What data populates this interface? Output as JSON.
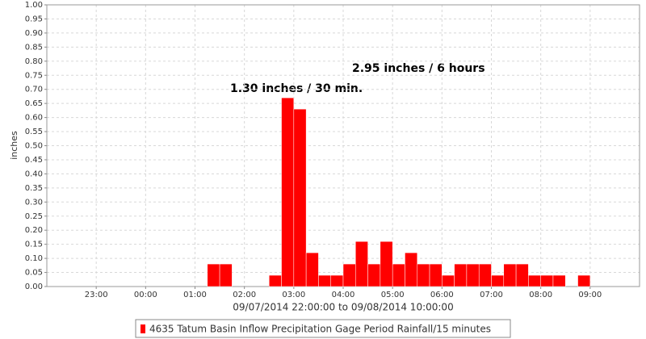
{
  "chart_data": {
    "type": "bar",
    "annotations": [
      "1.30 inches / 30 min.",
      "2.95 inches / 6 hours"
    ],
    "x_label": "09/07/2014 22:00:00 to 09/08/2014 10:00:00",
    "y_label": "inches",
    "xlim": [
      "22:00",
      "10:00"
    ],
    "xticks": [
      "23:00",
      "00:00",
      "01:00",
      "02:00",
      "03:00",
      "04:00",
      "05:00",
      "06:00",
      "07:00",
      "08:00",
      "09:00"
    ],
    "ylim": [
      0,
      1
    ],
    "yticks": [
      {
        "value": 0,
        "label": "0.00"
      },
      {
        "value": 0.05,
        "label": "0.05"
      },
      {
        "value": 0.1,
        "label": "0.10"
      },
      {
        "value": 0.15,
        "label": "0.15"
      },
      {
        "value": 0.2,
        "label": "0.20"
      },
      {
        "value": 0.25,
        "label": "0.25"
      },
      {
        "value": 0.3,
        "label": "0.30"
      },
      {
        "value": 0.35,
        "label": "0.35"
      },
      {
        "value": 0.4,
        "label": "0.40"
      },
      {
        "value": 0.45,
        "label": "0.45"
      },
      {
        "value": 0.5,
        "label": "0.50"
      },
      {
        "value": 0.55,
        "label": "0.55"
      },
      {
        "value": 0.6,
        "label": "0.60"
      },
      {
        "value": 0.65,
        "label": "0.65"
      },
      {
        "value": 0.7,
        "label": "0.70"
      },
      {
        "value": 0.75,
        "label": "0.75"
      },
      {
        "value": 0.8,
        "label": "0.80"
      },
      {
        "value": 0.85,
        "label": "0.85"
      },
      {
        "value": 0.9,
        "label": "0.90"
      },
      {
        "value": 0.95,
        "label": "0.95"
      },
      {
        "value": 1,
        "label": "1.00"
      }
    ],
    "grid": true,
    "series": [
      {
        "name": "4635 Tatum Basin Inflow Precipitation Gage Period Rainfall/15 minutes",
        "color": "#ff0000",
        "x": [
          "01:15",
          "01:30",
          "02:30",
          "02:45",
          "03:00",
          "03:15",
          "03:30",
          "03:45",
          "04:00",
          "04:15",
          "04:30",
          "04:45",
          "05:00",
          "05:15",
          "05:30",
          "05:45",
          "06:00",
          "06:15",
          "06:30",
          "06:45",
          "07:00",
          "07:15",
          "07:30",
          "07:45",
          "08:00",
          "08:15",
          "08:45"
        ],
        "values": [
          0.08,
          0.08,
          0.04,
          0.67,
          0.63,
          0.12,
          0.04,
          0.04,
          0.08,
          0.16,
          0.08,
          0.16,
          0.08,
          0.12,
          0.08,
          0.08,
          0.04,
          0.08,
          0.08,
          0.08,
          0.04,
          0.08,
          0.08,
          0.04,
          0.04,
          0.04,
          0.04
        ]
      }
    ]
  }
}
